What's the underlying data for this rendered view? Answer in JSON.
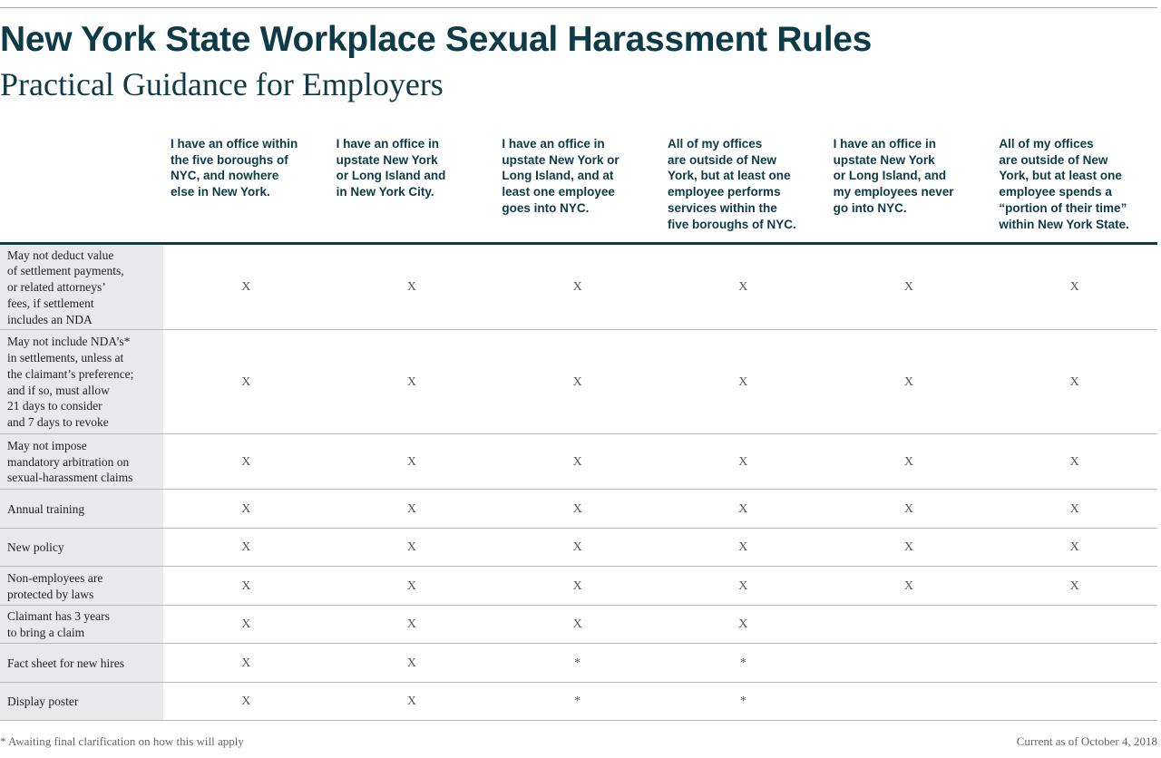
{
  "header": {
    "title": "New York State Workplace Sexual Harassment Rules",
    "subtitle": "Practical Guidance for Employers"
  },
  "table": {
    "columns": [
      [
        "I have an office within",
        "the five boroughs of",
        "NYC, and nowhere",
        "else in New York."
      ],
      [
        "I have an office in",
        "upstate New York",
        "or Long Island and",
        "in New York City."
      ],
      [
        "I have an office in",
        "upstate New York or",
        "Long Island, and at",
        "least one employee",
        "goes into NYC."
      ],
      [
        "All of my offices",
        "are outside of New",
        "York, but at least one",
        "employee performs",
        "services within the",
        "five boroughs of NYC."
      ],
      [
        "I have an office in",
        "upstate New York",
        "or Long Island, and",
        "my employees never",
        "go into NYC."
      ],
      [
        "All of my offices",
        "are outside of New",
        "York, but at least one",
        "employee spends a",
        "“portion of their time”",
        "within New York State."
      ]
    ],
    "rows": [
      {
        "label": [
          "May not deduct value",
          "of settlement payments,",
          "or related attorneys’",
          "fees, if settlement",
          "includes an NDA"
        ],
        "cells": [
          "X",
          "X",
          "X",
          "X",
          "X",
          "X"
        ]
      },
      {
        "label": [
          "May not include NDA’s*",
          "in settlements, unless at",
          "the claimant’s preference;",
          "and if so, must allow",
          "21 days to consider",
          "and 7 days to revoke"
        ],
        "cells": [
          "X",
          "X",
          "X",
          "X",
          "X",
          "X"
        ]
      },
      {
        "label": [
          "May not impose",
          "mandatory arbitration on",
          "sexual-harassment claims"
        ],
        "cells": [
          "X",
          "X",
          "X",
          "X",
          "X",
          "X"
        ]
      },
      {
        "label": [
          "Annual training"
        ],
        "cells": [
          "X",
          "X",
          "X",
          "X",
          "X",
          "X"
        ]
      },
      {
        "label": [
          "New policy"
        ],
        "cells": [
          "X",
          "X",
          "X",
          "X",
          "X",
          "X"
        ]
      },
      {
        "label": [
          "Non-employees are",
          "protected by laws"
        ],
        "cells": [
          "X",
          "X",
          "X",
          "X",
          "X",
          "X"
        ]
      },
      {
        "label": [
          "Claimant has 3 years",
          "to bring a claim"
        ],
        "cells": [
          "X",
          "X",
          "X",
          "X",
          null,
          null
        ]
      },
      {
        "label": [
          "Fact sheet for new hires"
        ],
        "cells": [
          "X",
          "X",
          "*",
          "*",
          null,
          null
        ]
      },
      {
        "label": [
          "Display poster"
        ],
        "cells": [
          "X",
          "X",
          "*",
          "*",
          null,
          null
        ]
      }
    ]
  },
  "footer": {
    "note": "* Awaiting final clarification on how this will apply",
    "date": "Current as of October 4, 2018"
  }
}
